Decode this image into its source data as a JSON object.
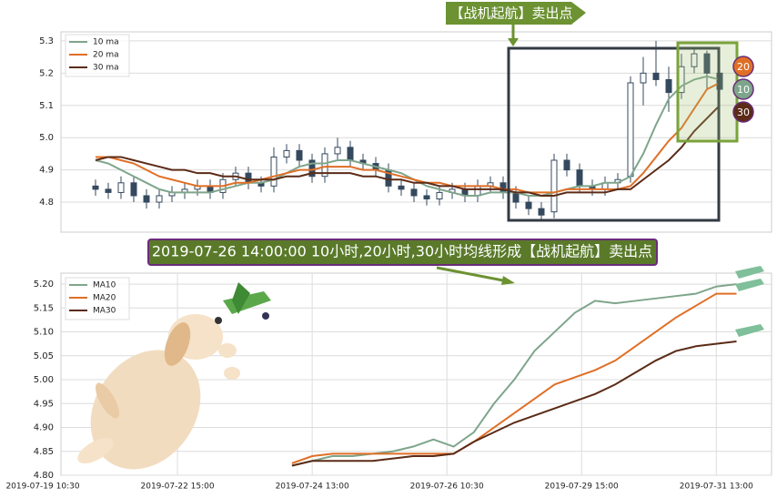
{
  "chart_data": [
    {
      "type": "candlestick",
      "open": [
        4.85,
        4.84,
        4.83,
        4.86,
        4.82,
        4.8,
        4.82,
        4.83,
        4.84,
        4.85,
        4.83,
        4.87,
        4.89,
        4.86,
        4.85,
        4.94,
        4.96,
        4.93,
        4.88,
        4.95,
        4.97,
        4.93,
        4.92,
        4.9,
        4.85,
        4.84,
        4.82,
        4.81,
        4.83,
        4.84,
        4.82,
        4.85,
        4.86,
        4.83,
        4.8,
        4.78,
        4.77,
        4.93,
        4.9,
        4.85,
        4.84,
        4.86,
        4.88,
        5.17,
        5.2,
        5.18,
        5.14,
        5.22,
        5.26,
        5.2
      ],
      "high": [
        4.87,
        4.86,
        4.88,
        4.88,
        4.84,
        4.84,
        4.85,
        4.86,
        4.87,
        4.87,
        4.89,
        4.91,
        4.91,
        4.88,
        4.97,
        4.98,
        4.98,
        4.95,
        4.97,
        5.0,
        4.99,
        4.95,
        4.94,
        4.92,
        4.87,
        4.86,
        4.84,
        4.85,
        4.86,
        4.86,
        4.87,
        4.88,
        4.88,
        4.85,
        4.82,
        4.8,
        4.95,
        4.95,
        4.92,
        4.87,
        4.88,
        4.89,
        5.19,
        5.25,
        5.3,
        5.22,
        5.26,
        5.28,
        5.27,
        5.22
      ],
      "low": [
        4.82,
        4.81,
        4.81,
        4.8,
        4.78,
        4.78,
        4.8,
        4.81,
        4.82,
        4.81,
        4.81,
        4.85,
        4.84,
        4.83,
        4.83,
        4.92,
        4.91,
        4.86,
        4.86,
        4.93,
        4.91,
        4.9,
        4.88,
        4.83,
        4.82,
        4.8,
        4.79,
        4.79,
        4.81,
        4.8,
        4.8,
        4.83,
        4.81,
        4.78,
        4.76,
        4.74,
        4.75,
        4.88,
        4.83,
        4.82,
        4.82,
        4.84,
        4.86,
        5.1,
        5.16,
        5.08,
        5.12,
        5.2,
        5.15,
        5.13
      ],
      "close": [
        4.84,
        4.83,
        4.86,
        4.82,
        4.8,
        4.82,
        4.83,
        4.84,
        4.85,
        4.83,
        4.87,
        4.89,
        4.86,
        4.85,
        4.94,
        4.96,
        4.93,
        4.88,
        4.95,
        4.97,
        4.93,
        4.92,
        4.9,
        4.85,
        4.84,
        4.82,
        4.81,
        4.83,
        4.84,
        4.82,
        4.85,
        4.86,
        4.83,
        4.8,
        4.78,
        4.76,
        4.93,
        4.9,
        4.85,
        4.84,
        4.86,
        4.87,
        5.17,
        5.2,
        5.18,
        5.14,
        5.22,
        5.26,
        5.2,
        5.15
      ],
      "up_color": "#ffffff",
      "down_color": "#34495e",
      "series": [
        {
          "name": "10 ma",
          "color": "#7ea58b",
          "values": [
            4.93,
            4.92,
            4.9,
            4.88,
            4.86,
            4.84,
            4.83,
            4.83,
            4.83,
            4.83,
            4.84,
            4.85,
            4.86,
            4.86,
            4.87,
            4.89,
            4.91,
            4.92,
            4.92,
            4.93,
            4.93,
            4.92,
            4.91,
            4.9,
            4.89,
            4.87,
            4.85,
            4.84,
            4.83,
            4.82,
            4.82,
            4.83,
            4.83,
            4.83,
            4.82,
            4.82,
            4.83,
            4.84,
            4.85,
            4.85,
            4.86,
            4.86,
            4.88,
            4.95,
            5.04,
            5.12,
            5.16,
            5.18,
            5.19,
            5.18
          ]
        },
        {
          "name": "20 ma",
          "color": "#e06f26",
          "values": [
            4.94,
            4.94,
            4.93,
            4.92,
            4.9,
            4.88,
            4.87,
            4.86,
            4.85,
            4.85,
            4.85,
            4.86,
            4.86,
            4.87,
            4.88,
            4.89,
            4.9,
            4.9,
            4.91,
            4.91,
            4.91,
            4.9,
            4.9,
            4.89,
            4.88,
            4.87,
            4.86,
            4.86,
            4.85,
            4.85,
            4.85,
            4.85,
            4.84,
            4.84,
            4.83,
            4.83,
            4.83,
            4.84,
            4.84,
            4.84,
            4.84,
            4.84,
            4.85,
            4.89,
            4.94,
            4.99,
            5.03,
            5.09,
            5.15,
            5.17
          ]
        },
        {
          "name": "30 ma",
          "color": "#5b2b17",
          "values": [
            4.93,
            4.94,
            4.94,
            4.93,
            4.92,
            4.91,
            4.9,
            4.9,
            4.89,
            4.89,
            4.88,
            4.88,
            4.87,
            4.87,
            4.87,
            4.88,
            4.88,
            4.89,
            4.89,
            4.89,
            4.89,
            4.88,
            4.88,
            4.87,
            4.87,
            4.86,
            4.86,
            4.85,
            4.85,
            4.84,
            4.84,
            4.84,
            4.84,
            4.83,
            4.83,
            4.82,
            4.82,
            4.83,
            4.83,
            4.83,
            4.83,
            4.84,
            4.84,
            4.87,
            4.9,
            4.93,
            4.97,
            5.02,
            5.06,
            5.1
          ]
        }
      ],
      "ylim": [
        4.707,
        5.328
      ],
      "yticks": [
        4.8,
        4.9,
        {
          "value": 5,
          "label": "5.0"
        },
        5.1,
        5.2,
        5.3
      ],
      "grid": true,
      "legend": "upper left",
      "annotations": [
        "【战机起航】卖出点"
      ],
      "badges": [
        "20",
        "10",
        "30"
      ]
    },
    {
      "type": "line",
      "x": [
        37,
        40,
        43,
        46,
        49,
        52,
        55,
        58,
        61,
        64,
        67,
        70,
        73,
        76,
        79,
        82,
        85,
        88,
        91,
        94,
        97,
        100,
        103
      ],
      "series": [
        {
          "name": "MA10",
          "color": "#7ea58b",
          "values": [
            4.82,
            4.83,
            4.84,
            4.84,
            4.845,
            4.85,
            4.86,
            4.875,
            4.86,
            4.89,
            4.95,
            5.0,
            5.06,
            5.1,
            5.14,
            5.165,
            5.16,
            5.165,
            5.17,
            5.175,
            5.18,
            5.195,
            5.2
          ]
        },
        {
          "name": "MA20",
          "color": "#e06f26",
          "values": [
            4.825,
            4.84,
            4.845,
            4.845,
            4.845,
            4.845,
            4.845,
            4.845,
            4.845,
            4.87,
            4.9,
            4.93,
            4.96,
            4.99,
            5.005,
            5.02,
            5.04,
            5.07,
            5.1,
            5.13,
            5.155,
            5.18,
            5.18
          ]
        },
        {
          "name": "MA30",
          "color": "#5b2b17",
          "values": [
            4.82,
            4.83,
            4.83,
            4.83,
            4.83,
            4.835,
            4.84,
            4.84,
            4.845,
            4.87,
            4.89,
            4.91,
            4.925,
            4.94,
            4.955,
            4.97,
            4.99,
            5.015,
            5.04,
            5.06,
            5.07,
            5.075,
            5.08
          ]
        }
      ],
      "xlim": [
        2.7,
        108.2
      ],
      "xticks": [
        {
          "value": 0,
          "label": "2019-07-19 10:30"
        },
        {
          "value": 20,
          "label": "2019-07-22 15:00"
        },
        {
          "value": 40,
          "label": "2019-07-24 13:00"
        },
        {
          "value": 60,
          "label": "2019-07-26 10:30"
        },
        {
          "value": 80,
          "label": "2019-07-29 15:00"
        },
        {
          "value": 100,
          "label": "2019-07-31 13:00"
        }
      ],
      "ylim": [
        4.8,
        5.223
      ],
      "yticks": [
        {
          "value": 4.8,
          "label": "4.80"
        },
        {
          "value": 4.85,
          "label": "4.85"
        },
        {
          "value": 4.9,
          "label": "4.90"
        },
        {
          "value": 4.95,
          "label": "4.95"
        },
        {
          "value": 5,
          "label": "5.00"
        },
        {
          "value": 5.05,
          "label": "5.05"
        },
        {
          "value": 5.1,
          "label": "5.10"
        },
        {
          "value": 5.15,
          "label": "5.15"
        },
        {
          "value": 5.2,
          "label": "5.20"
        }
      ],
      "grid": true,
      "legend": "upper left",
      "annotations": [
        "2019-07-26 14:00:00 10小时,20小时,30小时均线形成【战机起航】卖出点"
      ]
    }
  ]
}
